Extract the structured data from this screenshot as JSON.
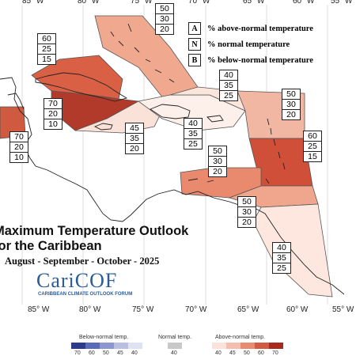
{
  "map": {
    "title_line1": "Maximum Temperature Outlook",
    "title_line2": "for the Caribbean",
    "period": "August - September - October - 2025",
    "logo_text": "CariCOF",
    "logo_subtext": "CARIBBEAN CLIMATE OUTLOOK FORUM",
    "lon_labels": [
      "85° W",
      "80° W",
      "75° W",
      "70° W",
      "65° W",
      "60° W",
      "55° W"
    ],
    "legend": [
      {
        "key": "A",
        "text": "% above-normal temperature"
      },
      {
        "key": "N",
        "text": "% normal temperature"
      },
      {
        "key": "B",
        "text": "% below-normal temperature"
      }
    ],
    "probability_boxes": [
      {
        "region": "bahamas",
        "values": [
          "50",
          "30",
          "20"
        ]
      },
      {
        "region": "cuba-west",
        "values": [
          "60",
          "25",
          "15"
        ]
      },
      {
        "region": "cuba-east",
        "values": [
          "70",
          "20",
          "10"
        ]
      },
      {
        "region": "belize",
        "values": [
          "70",
          "20",
          "10"
        ]
      },
      {
        "region": "jamaica",
        "values": [
          "45",
          "35",
          "20"
        ]
      },
      {
        "region": "hispaniola",
        "values": [
          "40",
          "35",
          "25"
        ]
      },
      {
        "region": "turks-caicos",
        "values": [
          "40",
          "35",
          "25"
        ]
      },
      {
        "region": "northern-leewards",
        "values": [
          "50",
          "30",
          "20"
        ]
      },
      {
        "region": "windwards",
        "values": [
          "60",
          "25",
          "15"
        ]
      },
      {
        "region": "abc-islands",
        "values": [
          "50",
          "30",
          "20"
        ]
      },
      {
        "region": "trinidad",
        "values": [
          "50",
          "30",
          "20"
        ]
      },
      {
        "region": "guianas",
        "values": [
          "40",
          "35",
          "25"
        ]
      }
    ],
    "colorbar": {
      "below_label": "Below-normal temp.",
      "normal_label": "Normal temp.",
      "above_label": "Above-normal temp.",
      "below_ticks": [
        "70",
        "60",
        "50",
        "45",
        "40"
      ],
      "normal_ticks": [
        "40"
      ],
      "above_ticks": [
        "40",
        "45",
        "50",
        "60",
        "70"
      ],
      "below_colors": [
        "#2e3a8c",
        "#5a6bb8",
        "#8c96d0",
        "#b9bfe3",
        "#dfe2f3"
      ],
      "normal_color": "#c8c8c8",
      "above_colors": [
        "#fbe3db",
        "#f4bfae",
        "#e78c73",
        "#d25a42",
        "#a82a1e"
      ]
    }
  }
}
